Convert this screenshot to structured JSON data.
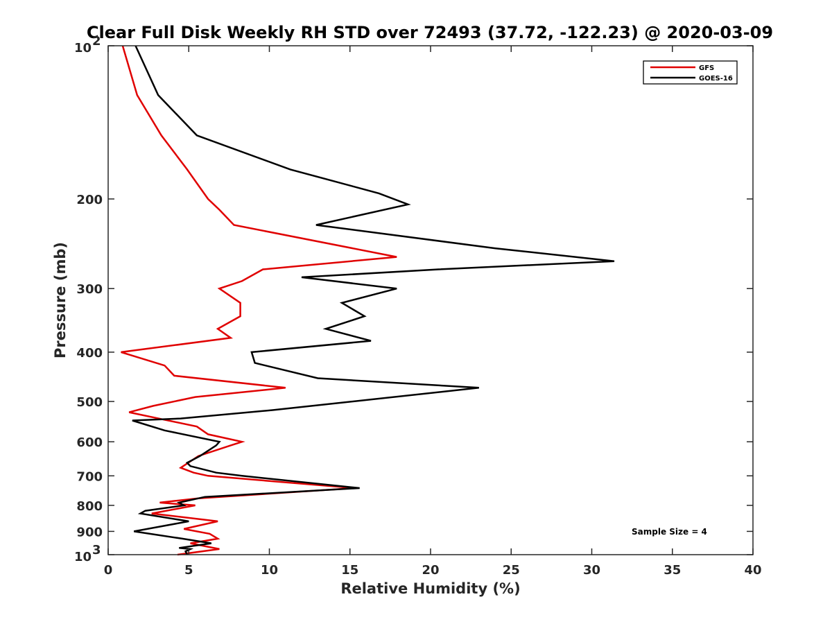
{
  "chart_data": {
    "type": "line",
    "title": "Clear Full Disk Weekly RH STD over 72493 (37.72, -122.23) @ 2020-03-09",
    "xlabel": "Relative Humidity (%)",
    "ylabel": "Pressure (mb)",
    "xlim": [
      0,
      40
    ],
    "ylim": [
      100,
      1000
    ],
    "y_scale": "log",
    "y_reversed": true,
    "x_ticks": [
      "0",
      "5",
      "10",
      "15",
      "20",
      "25",
      "30",
      "35",
      "40"
    ],
    "y_ticks": [
      {
        "value": 100,
        "base": "10",
        "exp": "2"
      },
      {
        "value": 200,
        "label": "200"
      },
      {
        "value": 300,
        "label": "300"
      },
      {
        "value": 400,
        "label": "400"
      },
      {
        "value": 500,
        "label": "500"
      },
      {
        "value": 600,
        "label": "600"
      },
      {
        "value": 700,
        "label": "700"
      },
      {
        "value": 800,
        "label": "800"
      },
      {
        "value": 900,
        "label": "900"
      },
      {
        "value": 1000,
        "base": "10",
        "exp": "3"
      }
    ],
    "legend_position": "top-right",
    "grid": false,
    "annotation": "Sample Size = 4",
    "series": [
      {
        "name": "GFS",
        "color": "#e00000",
        "points": [
          [
            0.9,
            100
          ],
          [
            1.8,
            125
          ],
          [
            3.3,
            150
          ],
          [
            4.9,
            175
          ],
          [
            6.2,
            200
          ],
          [
            6.9,
            210
          ],
          [
            7.8,
            225
          ],
          [
            17.9,
            260
          ],
          [
            9.6,
            275
          ],
          [
            8.3,
            290
          ],
          [
            6.9,
            300
          ],
          [
            8.2,
            320
          ],
          [
            8.2,
            340
          ],
          [
            6.8,
            360
          ],
          [
            7.6,
            375
          ],
          [
            0.8,
            400
          ],
          [
            3.5,
            425
          ],
          [
            4.1,
            445
          ],
          [
            11.0,
            470
          ],
          [
            5.4,
            490
          ],
          [
            2.8,
            510
          ],
          [
            1.3,
            525
          ],
          [
            5.5,
            560
          ],
          [
            6.2,
            580
          ],
          [
            8.3,
            600
          ],
          [
            7.6,
            610
          ],
          [
            5.6,
            640
          ],
          [
            4.5,
            675
          ],
          [
            5.3,
            690
          ],
          [
            6.2,
            700
          ],
          [
            15.3,
            740
          ],
          [
            5.6,
            775
          ],
          [
            3.2,
            790
          ],
          [
            5.4,
            800
          ],
          [
            2.7,
            830
          ],
          [
            6.8,
            860
          ],
          [
            4.7,
            890
          ],
          [
            6.3,
            910
          ],
          [
            6.8,
            930
          ],
          [
            5.1,
            950
          ],
          [
            6.9,
            975
          ],
          [
            4.3,
            1000
          ]
        ]
      },
      {
        "name": "GOES-16",
        "color": "#000000",
        "points": [
          [
            1.7,
            100
          ],
          [
            3.1,
            125
          ],
          [
            5.5,
            150
          ],
          [
            11.3,
            175
          ],
          [
            16.8,
            195
          ],
          [
            18.6,
            205
          ],
          [
            12.9,
            225
          ],
          [
            24.0,
            250
          ],
          [
            31.4,
            265
          ],
          [
            20.5,
            275
          ],
          [
            12.0,
            285
          ],
          [
            17.9,
            300
          ],
          [
            14.5,
            320
          ],
          [
            15.9,
            340
          ],
          [
            13.5,
            360
          ],
          [
            16.3,
            380
          ],
          [
            8.9,
            400
          ],
          [
            9.1,
            420
          ],
          [
            13.0,
            450
          ],
          [
            23.0,
            470
          ],
          [
            10.2,
            520
          ],
          [
            4.5,
            540
          ],
          [
            1.5,
            545
          ],
          [
            3.5,
            570
          ],
          [
            6.9,
            600
          ],
          [
            6.7,
            610
          ],
          [
            5.7,
            640
          ],
          [
            4.9,
            660
          ],
          [
            5.1,
            670
          ],
          [
            6.7,
            690
          ],
          [
            8.3,
            700
          ],
          [
            15.6,
            740
          ],
          [
            6.0,
            770
          ],
          [
            4.4,
            790
          ],
          [
            4.7,
            800
          ],
          [
            2.3,
            820
          ],
          [
            2.0,
            830
          ],
          [
            5.0,
            860
          ],
          [
            1.6,
            900
          ],
          [
            4.6,
            930
          ],
          [
            6.4,
            950
          ],
          [
            4.4,
            970
          ],
          [
            5.1,
            975
          ],
          [
            4.8,
            985
          ],
          [
            4.9,
            1000
          ]
        ]
      }
    ]
  }
}
